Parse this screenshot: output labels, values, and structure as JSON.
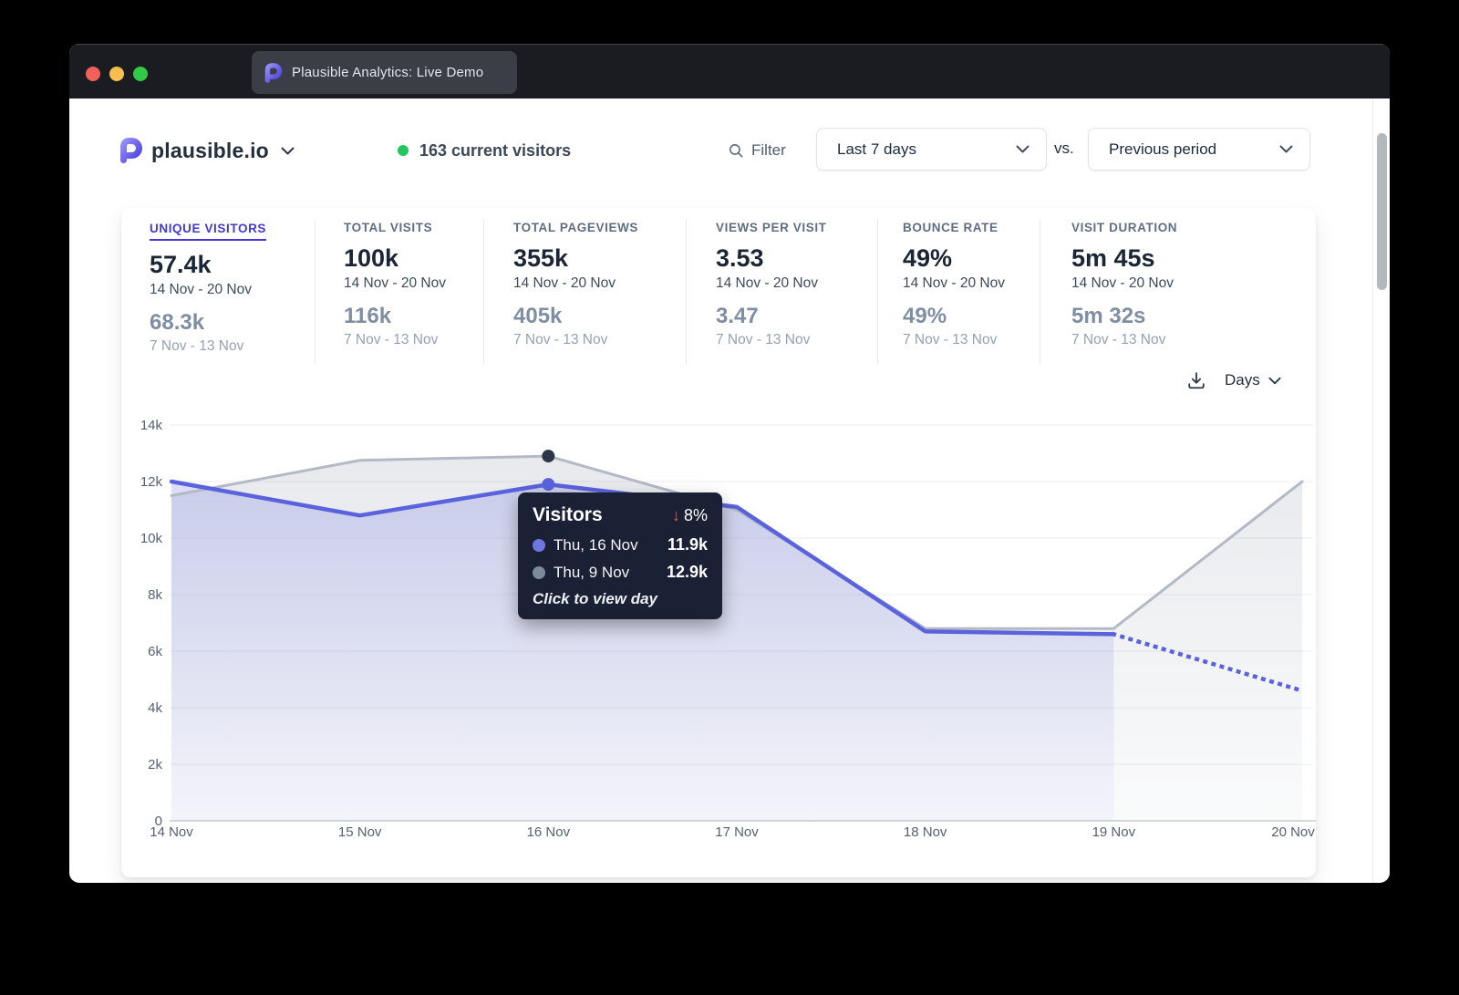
{
  "window": {
    "tab_title": "Plausible Analytics: Live Demo"
  },
  "header": {
    "site_name": "plausible.io",
    "current_visitors": "163 current visitors",
    "filter_label": "Filter",
    "date_range": "Last 7 days",
    "vs_label": "vs.",
    "comparison": "Previous period"
  },
  "stats": [
    {
      "label": "UNIQUE VISITORS",
      "value": "57.4k",
      "period": "14 Nov - 20 Nov",
      "prev_value": "68.3k",
      "prev_period": "7 Nov - 13 Nov"
    },
    {
      "label": "TOTAL VISITS",
      "value": "100k",
      "period": "14 Nov - 20 Nov",
      "prev_value": "116k",
      "prev_period": "7 Nov - 13 Nov"
    },
    {
      "label": "TOTAL PAGEVIEWS",
      "value": "355k",
      "period": "14 Nov - 20 Nov",
      "prev_value": "405k",
      "prev_period": "7 Nov - 13 Nov"
    },
    {
      "label": "VIEWS PER VISIT",
      "value": "3.53",
      "period": "14 Nov - 20 Nov",
      "prev_value": "3.47",
      "prev_period": "7 Nov - 13 Nov"
    },
    {
      "label": "BOUNCE RATE",
      "value": "49%",
      "period": "14 Nov - 20 Nov",
      "prev_value": "49%",
      "prev_period": "7 Nov - 13 Nov"
    },
    {
      "label": "VISIT DURATION",
      "value": "5m 45s",
      "period": "14 Nov - 20 Nov",
      "prev_value": "5m 32s",
      "prev_period": "7 Nov - 13 Nov"
    }
  ],
  "chart_header": {
    "interval_label": "Days"
  },
  "chart_data": {
    "type": "area",
    "title": "Unique visitors, last 7 days vs previous period",
    "x": [
      "14 Nov",
      "15 Nov",
      "16 Nov",
      "17 Nov",
      "18 Nov",
      "19 Nov",
      "20 Nov"
    ],
    "y_ticks": [
      "0",
      "2k",
      "4k",
      "6k",
      "8k",
      "10k",
      "12k",
      "14k"
    ],
    "ylim": [
      0,
      14000
    ],
    "grid": true,
    "legend_position": "none",
    "series": [
      {
        "name": "Visitors 14 Nov - 20 Nov",
        "values_k": [
          12.0,
          10.8,
          11.9,
          11.1,
          6.7,
          6.6,
          4.6
        ],
        "color": "#5a63dc",
        "dashed_from_index": 5
      },
      {
        "name": "Visitors 7 Nov - 13 Nov (previous period)",
        "values_k": [
          11.5,
          12.75,
          12.9,
          11.0,
          6.8,
          6.8,
          12.0
        ],
        "color": "#b3bac6"
      }
    ],
    "highlight_index": 2,
    "marker_colors": {
      "current": "#5a63dc",
      "previous": "#2d3748"
    }
  },
  "tooltip": {
    "title": "Visitors",
    "change": "8%",
    "change_direction": "down",
    "rows": [
      {
        "label": "Thu, 16 Nov",
        "value": "11.9k",
        "color": "#6d76e2"
      },
      {
        "label": "Thu, 9 Nov",
        "value": "12.9k",
        "color": "#7d8a9c"
      }
    ],
    "footer": "Click to view day"
  }
}
